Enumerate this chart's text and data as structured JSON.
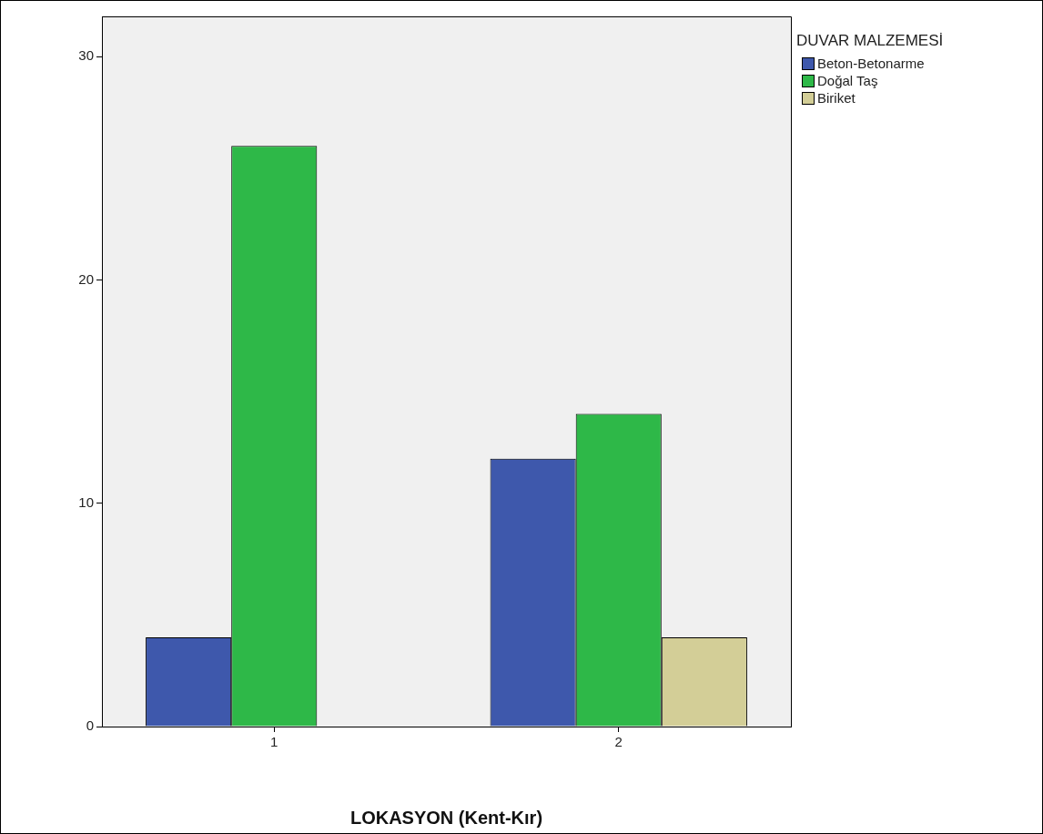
{
  "chart_data": {
    "type": "bar",
    "xlabel": "LOKASYON (Kent-Kır)",
    "legend_title": "DUVAR MALZEMESİ",
    "categories": [
      "1",
      "2"
    ],
    "series": [
      {
        "name": "Beton-Betonarme",
        "color": "#3e58ac",
        "values": [
          4,
          12
        ]
      },
      {
        "name": "Doğal Taş",
        "color": "#2eb848",
        "values": [
          26,
          14
        ]
      },
      {
        "name": "Biriket",
        "color": "#d3ce97",
        "values": [
          null,
          4
        ]
      }
    ],
    "ylim": [
      0,
      31.8
    ],
    "yticks": [
      0,
      10,
      20,
      30
    ],
    "grid": false,
    "legend": "top right"
  }
}
